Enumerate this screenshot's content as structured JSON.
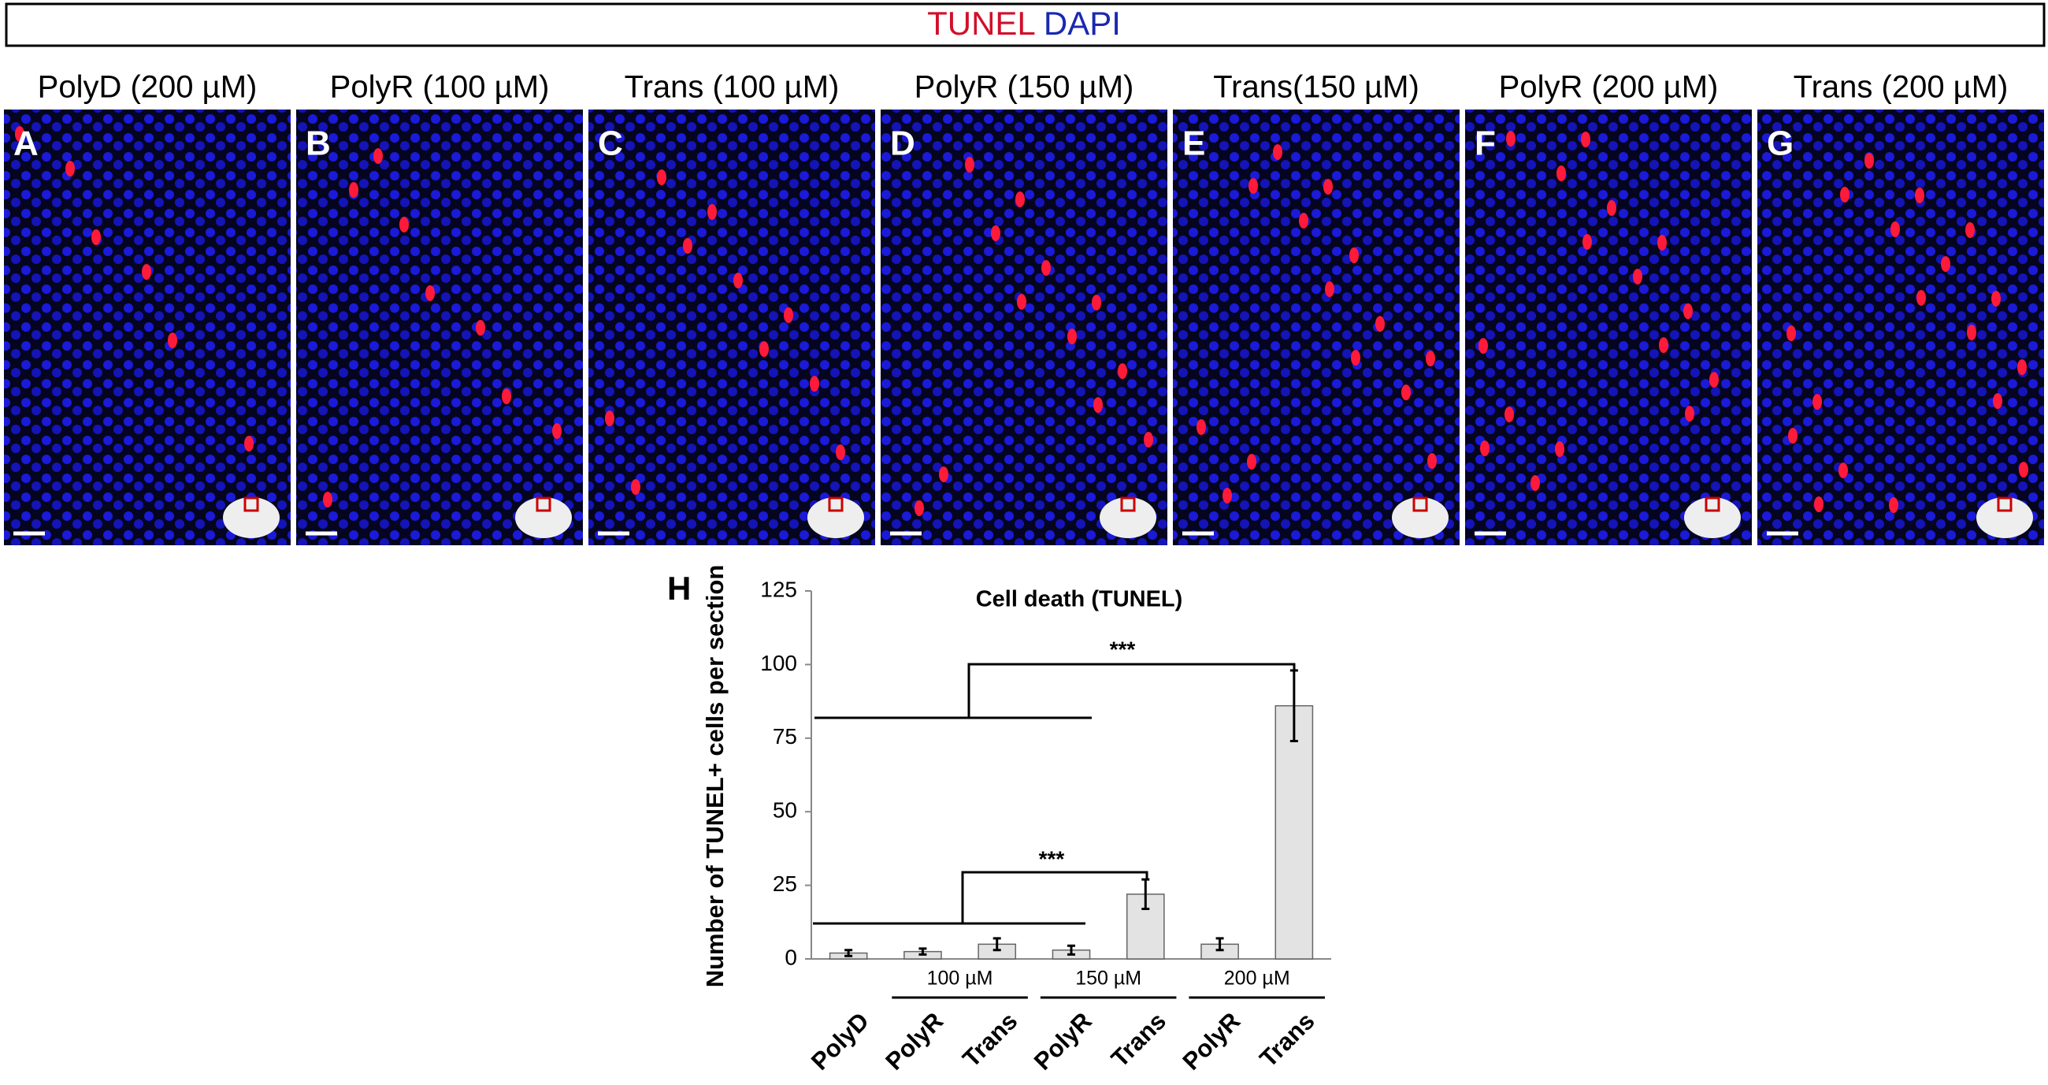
{
  "header": {
    "stain1": "TUNEL",
    "stain2": "DAPI"
  },
  "panels": [
    {
      "label": "A",
      "title": "PolyD (200 µM)"
    },
    {
      "label": "B",
      "title": "PolyR (100 µM)"
    },
    {
      "label": "C",
      "title": "Trans (100 µM)"
    },
    {
      "label": "D",
      "title": "PolyR (150 µM)"
    },
    {
      "label": "E",
      "title": "Trans(150 µM)"
    },
    {
      "label": "F",
      "title": "PolyR (200 µM)"
    },
    {
      "label": "G",
      "title": "Trans (200 µM)"
    }
  ],
  "chart_data": {
    "type": "bar",
    "panel_label": "H",
    "title": "Cell death (TUNEL)",
    "y_label": "Number of TUNEL+ cells per section",
    "categories": [
      "PolyD",
      "PolyR",
      "Trans",
      "PolyR",
      "Trans",
      "PolyR",
      "Trans"
    ],
    "groups": [
      "100 µM",
      "150 µM",
      "200 µM"
    ],
    "values": [
      2,
      2.5,
      5,
      3,
      22,
      5,
      86
    ],
    "errors": [
      1,
      1,
      2,
      1.5,
      5,
      2,
      12
    ],
    "color": "#e3e3e3",
    "ylim": [
      0,
      125
    ],
    "yticks": [
      0,
      25,
      50,
      75,
      100,
      125
    ],
    "annotations": [
      "***",
      "***"
    ]
  }
}
